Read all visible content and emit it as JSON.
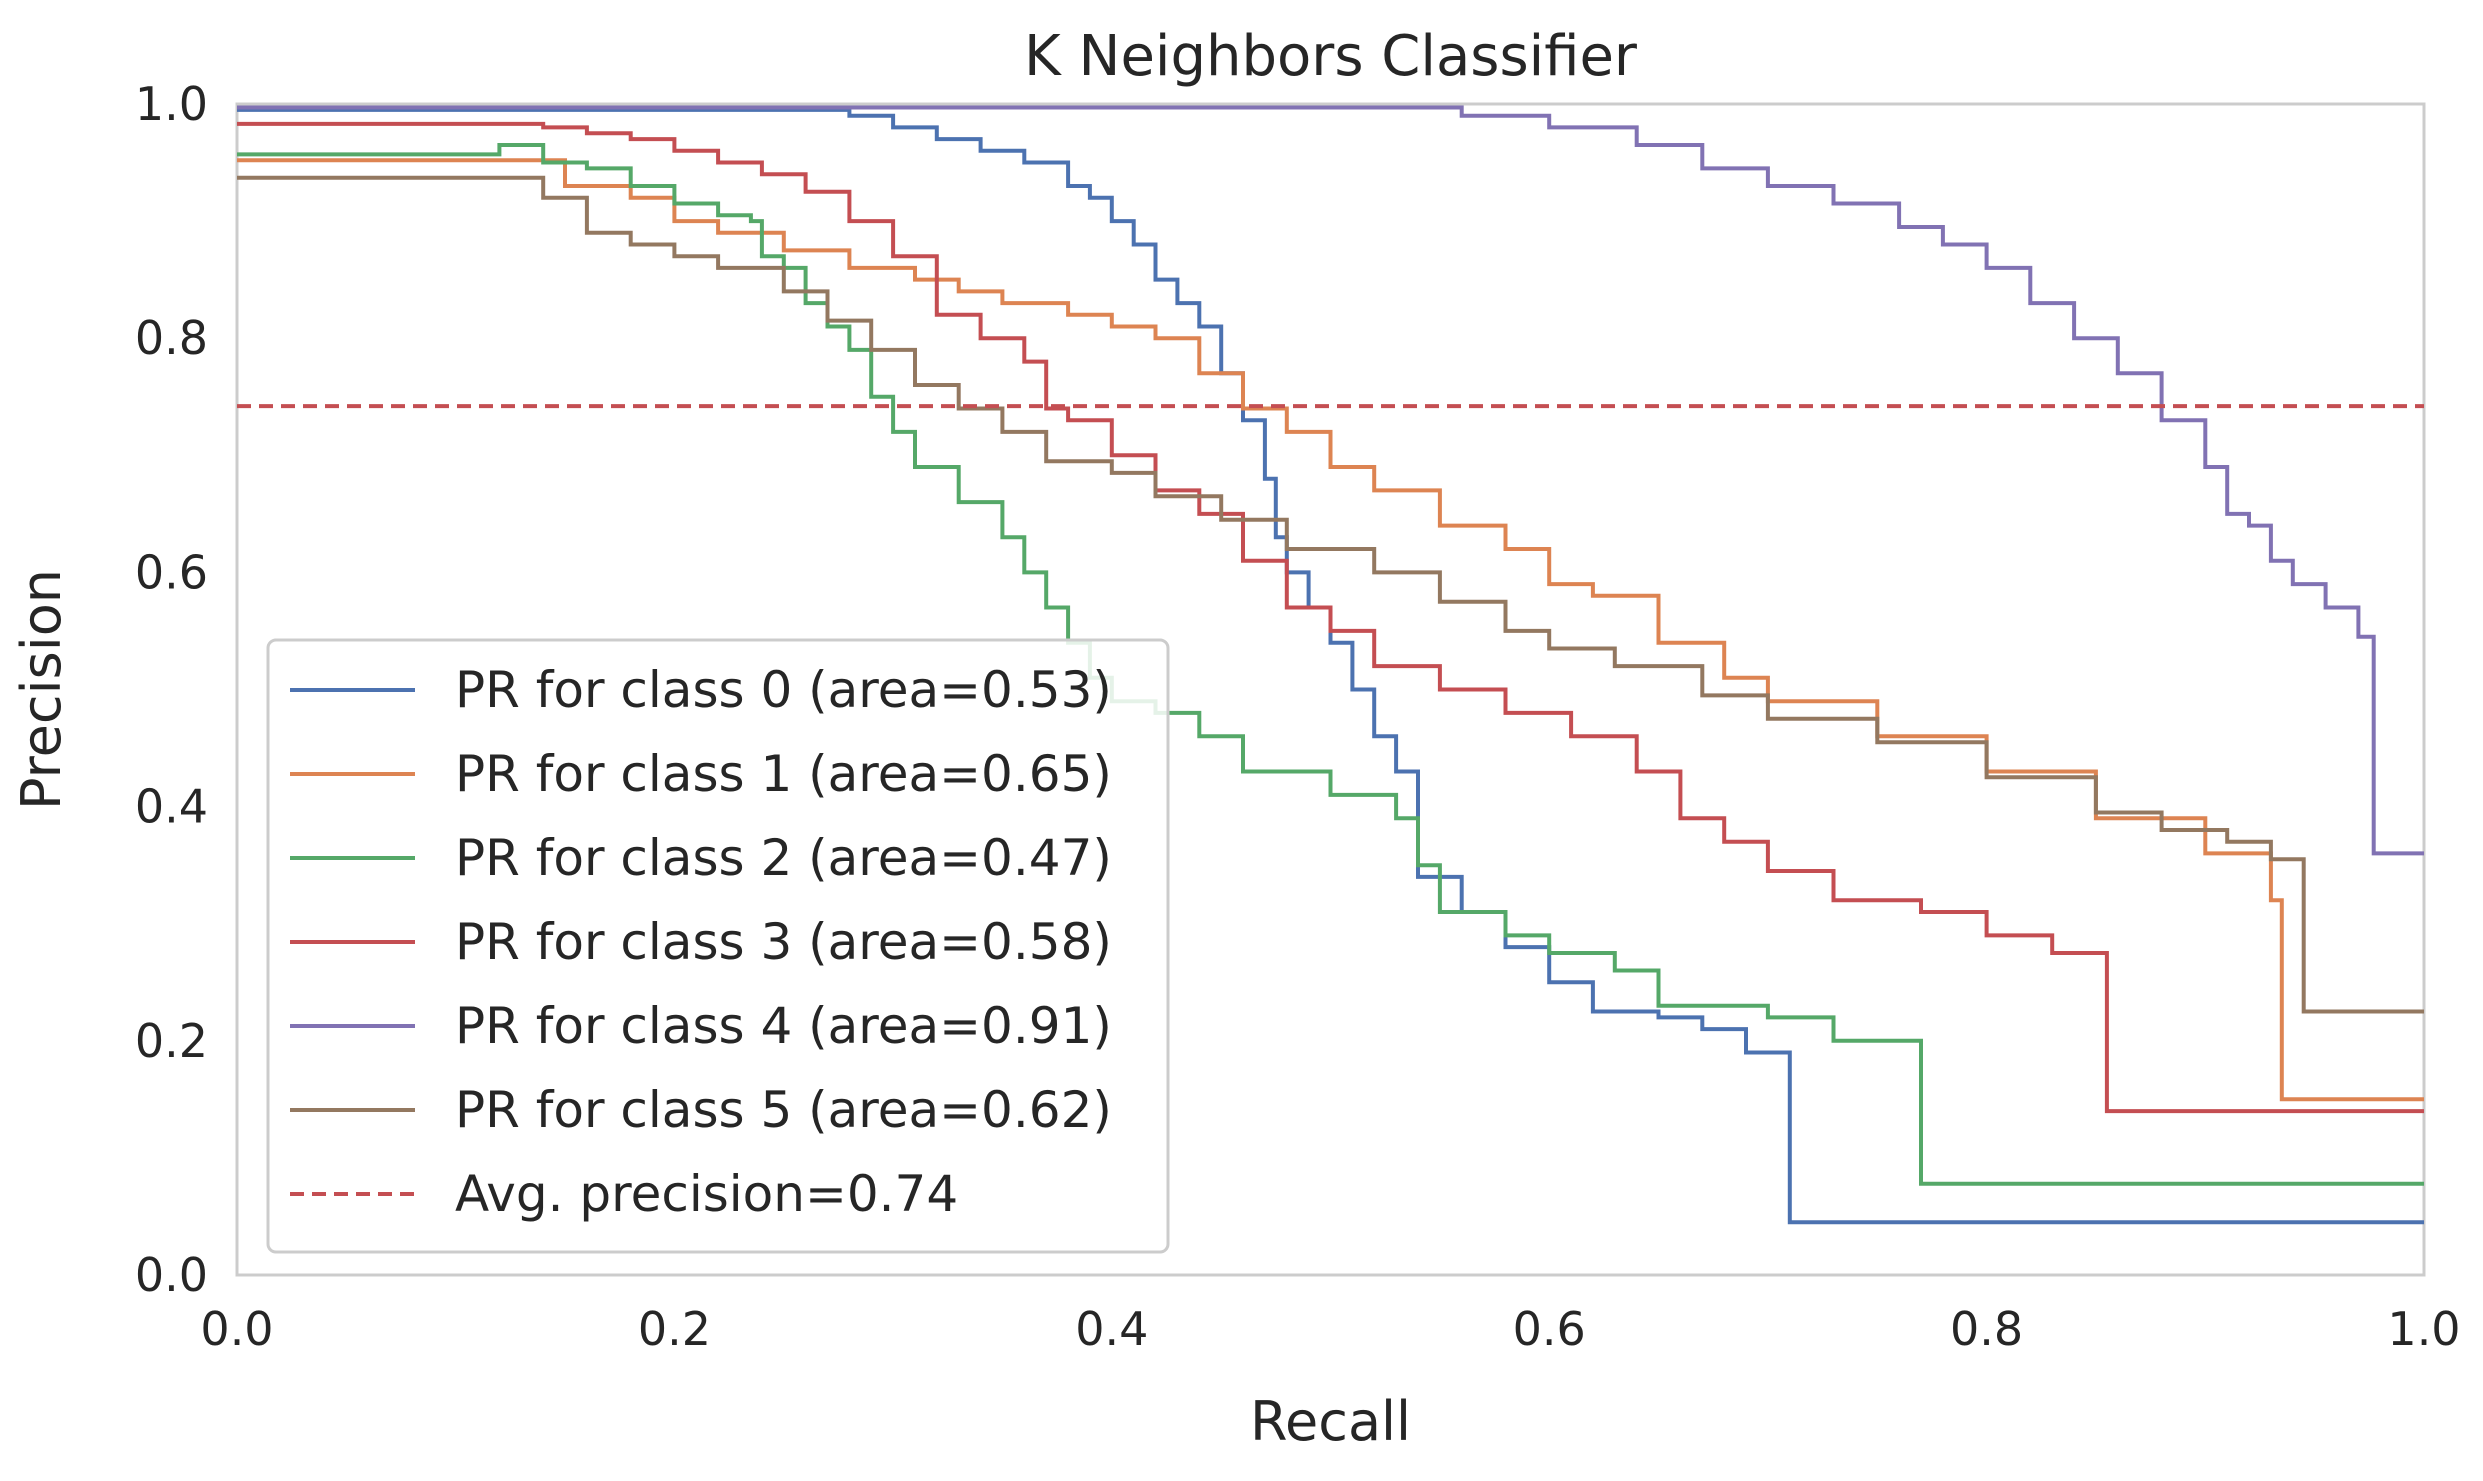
{
  "chart_data": {
    "type": "line",
    "title": "K Neighbors Classifier",
    "xlabel": "Recall",
    "ylabel": "Precision",
    "xlim": [
      0.0,
      1.0
    ],
    "ylim": [
      0.0,
      1.0
    ],
    "xticks": [
      "0.0",
      "0.2",
      "0.4",
      "0.6",
      "0.8",
      "1.0"
    ],
    "yticks": [
      "0.0",
      "0.2",
      "0.4",
      "0.6",
      "0.8",
      "1.0"
    ],
    "grid": false,
    "legend_position": "lower-left",
    "series": [
      {
        "name": "PR for class 0 (area=0.53)",
        "color": "#4C72B0",
        "points": [
          [
            0,
            0.995
          ],
          [
            0.25,
            0.995
          ],
          [
            0.28,
            0.99
          ],
          [
            0.3,
            0.98
          ],
          [
            0.32,
            0.97
          ],
          [
            0.34,
            0.96
          ],
          [
            0.36,
            0.95
          ],
          [
            0.38,
            0.93
          ],
          [
            0.39,
            0.92
          ],
          [
            0.4,
            0.9
          ],
          [
            0.41,
            0.88
          ],
          [
            0.42,
            0.85
          ],
          [
            0.43,
            0.83
          ],
          [
            0.44,
            0.81
          ],
          [
            0.45,
            0.77
          ],
          [
            0.46,
            0.73
          ],
          [
            0.47,
            0.68
          ],
          [
            0.475,
            0.63
          ],
          [
            0.48,
            0.6
          ],
          [
            0.49,
            0.57
          ],
          [
            0.5,
            0.54
          ],
          [
            0.51,
            0.5
          ],
          [
            0.52,
            0.46
          ],
          [
            0.53,
            0.43
          ],
          [
            0.54,
            0.43
          ],
          [
            0.54,
            0.34
          ],
          [
            0.56,
            0.34
          ],
          [
            0.56,
            0.31
          ],
          [
            0.58,
            0.31
          ],
          [
            0.58,
            0.28
          ],
          [
            0.6,
            0.28
          ],
          [
            0.6,
            0.25
          ],
          [
            0.62,
            0.25
          ],
          [
            0.62,
            0.225
          ],
          [
            0.65,
            0.22
          ],
          [
            0.67,
            0.21
          ],
          [
            0.69,
            0.19
          ],
          [
            0.71,
            0.18
          ],
          [
            0.71,
            0.045
          ],
          [
            1.0,
            0.045
          ]
        ]
      },
      {
        "name": "PR for class 1 (area=0.65)",
        "color": "#DD8452",
        "points": [
          [
            0,
            0.952
          ],
          [
            0.12,
            0.952
          ],
          [
            0.15,
            0.93
          ],
          [
            0.18,
            0.92
          ],
          [
            0.2,
            0.9
          ],
          [
            0.22,
            0.89
          ],
          [
            0.25,
            0.875
          ],
          [
            0.28,
            0.86
          ],
          [
            0.31,
            0.85
          ],
          [
            0.33,
            0.84
          ],
          [
            0.35,
            0.83
          ],
          [
            0.38,
            0.82
          ],
          [
            0.4,
            0.81
          ],
          [
            0.42,
            0.8
          ],
          [
            0.44,
            0.77
          ],
          [
            0.46,
            0.74
          ],
          [
            0.48,
            0.72
          ],
          [
            0.5,
            0.69
          ],
          [
            0.52,
            0.67
          ],
          [
            0.55,
            0.64
          ],
          [
            0.58,
            0.62
          ],
          [
            0.6,
            0.59
          ],
          [
            0.62,
            0.58
          ],
          [
            0.65,
            0.54
          ],
          [
            0.68,
            0.51
          ],
          [
            0.7,
            0.49
          ],
          [
            0.75,
            0.46
          ],
          [
            0.8,
            0.43
          ],
          [
            0.85,
            0.39
          ],
          [
            0.9,
            0.36
          ],
          [
            0.93,
            0.32
          ],
          [
            0.935,
            0.32
          ],
          [
            0.935,
            0.15
          ],
          [
            1.0,
            0.15
          ]
        ]
      },
      {
        "name": "PR for class 2 (area=0.47)",
        "color": "#55A868",
        "points": [
          [
            0,
            0.957
          ],
          [
            0.1,
            0.957
          ],
          [
            0.12,
            0.965
          ],
          [
            0.14,
            0.95
          ],
          [
            0.16,
            0.945
          ],
          [
            0.18,
            0.93
          ],
          [
            0.2,
            0.915
          ],
          [
            0.22,
            0.905
          ],
          [
            0.235,
            0.9
          ],
          [
            0.24,
            0.87
          ],
          [
            0.25,
            0.86
          ],
          [
            0.26,
            0.83
          ],
          [
            0.27,
            0.81
          ],
          [
            0.28,
            0.79
          ],
          [
            0.29,
            0.75
          ],
          [
            0.3,
            0.72
          ],
          [
            0.31,
            0.69
          ],
          [
            0.33,
            0.66
          ],
          [
            0.35,
            0.63
          ],
          [
            0.36,
            0.6
          ],
          [
            0.37,
            0.57
          ],
          [
            0.38,
            0.54
          ],
          [
            0.39,
            0.51
          ],
          [
            0.4,
            0.49
          ],
          [
            0.42,
            0.48
          ],
          [
            0.44,
            0.46
          ],
          [
            0.46,
            0.43
          ],
          [
            0.5,
            0.41
          ],
          [
            0.53,
            0.39
          ],
          [
            0.54,
            0.35
          ],
          [
            0.55,
            0.31
          ],
          [
            0.57,
            0.31
          ],
          [
            0.58,
            0.29
          ],
          [
            0.6,
            0.275
          ],
          [
            0.63,
            0.26
          ],
          [
            0.65,
            0.23
          ],
          [
            0.7,
            0.22
          ],
          [
            0.73,
            0.2
          ],
          [
            0.77,
            0.19
          ],
          [
            0.77,
            0.078
          ],
          [
            1.0,
            0.078
          ]
        ]
      },
      {
        "name": "PR for class 3 (area=0.58)",
        "color": "#C44E52",
        "points": [
          [
            0,
            0.983
          ],
          [
            0.12,
            0.983
          ],
          [
            0.14,
            0.98
          ],
          [
            0.16,
            0.975
          ],
          [
            0.18,
            0.97
          ],
          [
            0.2,
            0.96
          ],
          [
            0.22,
            0.95
          ],
          [
            0.24,
            0.94
          ],
          [
            0.26,
            0.925
          ],
          [
            0.28,
            0.9
          ],
          [
            0.3,
            0.87
          ],
          [
            0.32,
            0.82
          ],
          [
            0.34,
            0.8
          ],
          [
            0.36,
            0.78
          ],
          [
            0.37,
            0.74
          ],
          [
            0.38,
            0.73
          ],
          [
            0.4,
            0.7
          ],
          [
            0.42,
            0.67
          ],
          [
            0.44,
            0.65
          ],
          [
            0.46,
            0.61
          ],
          [
            0.48,
            0.57
          ],
          [
            0.5,
            0.55
          ],
          [
            0.52,
            0.52
          ],
          [
            0.55,
            0.5
          ],
          [
            0.58,
            0.48
          ],
          [
            0.61,
            0.46
          ],
          [
            0.64,
            0.43
          ],
          [
            0.66,
            0.39
          ],
          [
            0.68,
            0.37
          ],
          [
            0.7,
            0.345
          ],
          [
            0.73,
            0.345
          ],
          [
            0.73,
            0.32
          ],
          [
            0.77,
            0.31
          ],
          [
            0.8,
            0.29
          ],
          [
            0.83,
            0.275
          ],
          [
            0.855,
            0.26
          ],
          [
            0.855,
            0.14
          ],
          [
            1.0,
            0.14
          ]
        ]
      },
      {
        "name": "PR for class 4 (area=0.91)",
        "color": "#8172B3",
        "points": [
          [
            0,
            0.997
          ],
          [
            0.5,
            0.997
          ],
          [
            0.56,
            0.99
          ],
          [
            0.6,
            0.98
          ],
          [
            0.64,
            0.965
          ],
          [
            0.67,
            0.945
          ],
          [
            0.7,
            0.93
          ],
          [
            0.73,
            0.915
          ],
          [
            0.76,
            0.895
          ],
          [
            0.78,
            0.88
          ],
          [
            0.8,
            0.86
          ],
          [
            0.82,
            0.83
          ],
          [
            0.84,
            0.8
          ],
          [
            0.86,
            0.77
          ],
          [
            0.88,
            0.73
          ],
          [
            0.9,
            0.69
          ],
          [
            0.91,
            0.65
          ],
          [
            0.92,
            0.64
          ],
          [
            0.93,
            0.61
          ],
          [
            0.94,
            0.59
          ],
          [
            0.955,
            0.57
          ],
          [
            0.97,
            0.545
          ],
          [
            0.977,
            0.54
          ],
          [
            0.977,
            0.36
          ],
          [
            1.0,
            0.36
          ]
        ]
      },
      {
        "name": "PR for class 5 (area=0.62)",
        "color": "#937860",
        "points": [
          [
            0,
            0.937
          ],
          [
            0.12,
            0.937
          ],
          [
            0.14,
            0.92
          ],
          [
            0.16,
            0.89
          ],
          [
            0.18,
            0.88
          ],
          [
            0.2,
            0.87
          ],
          [
            0.22,
            0.86
          ],
          [
            0.25,
            0.84
          ],
          [
            0.27,
            0.815
          ],
          [
            0.29,
            0.79
          ],
          [
            0.31,
            0.76
          ],
          [
            0.33,
            0.74
          ],
          [
            0.35,
            0.72
          ],
          [
            0.37,
            0.695
          ],
          [
            0.4,
            0.685
          ],
          [
            0.42,
            0.665
          ],
          [
            0.45,
            0.645
          ],
          [
            0.48,
            0.62
          ],
          [
            0.52,
            0.6
          ],
          [
            0.55,
            0.575
          ],
          [
            0.58,
            0.55
          ],
          [
            0.6,
            0.535
          ],
          [
            0.63,
            0.52
          ],
          [
            0.67,
            0.495
          ],
          [
            0.7,
            0.475
          ],
          [
            0.75,
            0.455
          ],
          [
            0.8,
            0.425
          ],
          [
            0.85,
            0.395
          ],
          [
            0.88,
            0.38
          ],
          [
            0.91,
            0.37
          ],
          [
            0.93,
            0.355
          ],
          [
            0.945,
            0.345
          ],
          [
            0.945,
            0.225
          ],
          [
            1.0,
            0.225
          ]
        ]
      }
    ],
    "reference_line": {
      "name": "Avg. precision=0.74",
      "y": 0.742,
      "color": "#C44E52",
      "style": "dashed"
    }
  }
}
